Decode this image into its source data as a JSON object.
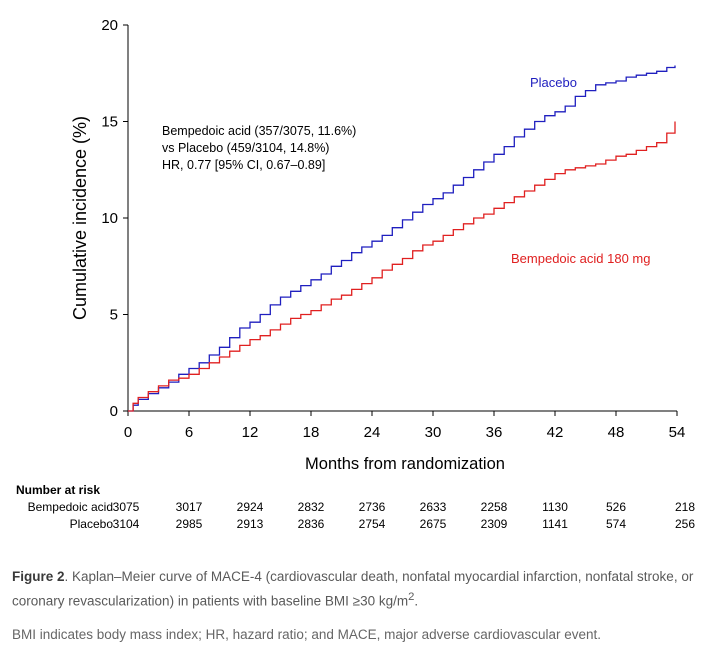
{
  "chart_data": {
    "type": "line",
    "title": "",
    "xlabel": "Months from randomization",
    "ylabel": "Cumulative incidence (%)",
    "xlim": [
      0,
      54
    ],
    "ylim": [
      0,
      20
    ],
    "xticks": [
      0,
      6,
      12,
      18,
      24,
      30,
      36,
      42,
      48,
      54
    ],
    "yticks": [
      0,
      5,
      10,
      15,
      20
    ],
    "series": [
      {
        "name": "Placebo",
        "color": "#1f1fbf",
        "points": [
          [
            0,
            0
          ],
          [
            0.5,
            0.3
          ],
          [
            1,
            0.6
          ],
          [
            2,
            0.9
          ],
          [
            3,
            1.2
          ],
          [
            4,
            1.5
          ],
          [
            5,
            1.9
          ],
          [
            6,
            2.2
          ],
          [
            7,
            2.5
          ],
          [
            8,
            2.9
          ],
          [
            9,
            3.3
          ],
          [
            10,
            3.8
          ],
          [
            11,
            4.3
          ],
          [
            12,
            4.6
          ],
          [
            13,
            5.0
          ],
          [
            14,
            5.5
          ],
          [
            15,
            5.9
          ],
          [
            16,
            6.2
          ],
          [
            17,
            6.5
          ],
          [
            18,
            6.8
          ],
          [
            19,
            7.1
          ],
          [
            20,
            7.5
          ],
          [
            21,
            7.8
          ],
          [
            22,
            8.2
          ],
          [
            23,
            8.5
          ],
          [
            24,
            8.8
          ],
          [
            25,
            9.1
          ],
          [
            26,
            9.5
          ],
          [
            27,
            9.9
          ],
          [
            28,
            10.3
          ],
          [
            29,
            10.7
          ],
          [
            30,
            11.0
          ],
          [
            31,
            11.3
          ],
          [
            32,
            11.7
          ],
          [
            33,
            12.1
          ],
          [
            34,
            12.5
          ],
          [
            35,
            12.9
          ],
          [
            36,
            13.3
          ],
          [
            37,
            13.7
          ],
          [
            38,
            14.2
          ],
          [
            39,
            14.6
          ],
          [
            40,
            15.0
          ],
          [
            41,
            15.3
          ],
          [
            42,
            15.5
          ],
          [
            43,
            15.8
          ],
          [
            44,
            16.3
          ],
          [
            45,
            16.6
          ],
          [
            46,
            16.9
          ],
          [
            47,
            17.0
          ],
          [
            48,
            17.1
          ],
          [
            49,
            17.3
          ],
          [
            50,
            17.4
          ],
          [
            51,
            17.5
          ],
          [
            52,
            17.6
          ],
          [
            53,
            17.8
          ],
          [
            53.8,
            17.9
          ]
        ]
      },
      {
        "name": "Bempedoic acid 180 mg",
        "color": "#e02020",
        "points": [
          [
            0,
            0
          ],
          [
            0.5,
            0.4
          ],
          [
            1,
            0.7
          ],
          [
            2,
            1.0
          ],
          [
            3,
            1.3
          ],
          [
            4,
            1.6
          ],
          [
            5,
            1.7
          ],
          [
            6,
            1.9
          ],
          [
            7,
            2.2
          ],
          [
            8,
            2.5
          ],
          [
            9,
            2.8
          ],
          [
            10,
            3.1
          ],
          [
            11,
            3.4
          ],
          [
            12,
            3.7
          ],
          [
            13,
            3.9
          ],
          [
            14,
            4.2
          ],
          [
            15,
            4.5
          ],
          [
            16,
            4.8
          ],
          [
            17,
            5.0
          ],
          [
            18,
            5.2
          ],
          [
            19,
            5.5
          ],
          [
            20,
            5.8
          ],
          [
            21,
            6.0
          ],
          [
            22,
            6.3
          ],
          [
            23,
            6.6
          ],
          [
            24,
            6.9
          ],
          [
            25,
            7.3
          ],
          [
            26,
            7.6
          ],
          [
            27,
            7.9
          ],
          [
            28,
            8.3
          ],
          [
            29,
            8.6
          ],
          [
            30,
            8.8
          ],
          [
            31,
            9.1
          ],
          [
            32,
            9.4
          ],
          [
            33,
            9.7
          ],
          [
            34,
            10.0
          ],
          [
            35,
            10.2
          ],
          [
            36,
            10.5
          ],
          [
            37,
            10.8
          ],
          [
            38,
            11.1
          ],
          [
            39,
            11.4
          ],
          [
            40,
            11.7
          ],
          [
            41,
            12.0
          ],
          [
            42,
            12.3
          ],
          [
            43,
            12.5
          ],
          [
            44,
            12.6
          ],
          [
            45,
            12.7
          ],
          [
            46,
            12.8
          ],
          [
            47,
            13.0
          ],
          [
            48,
            13.2
          ],
          [
            49,
            13.3
          ],
          [
            50,
            13.5
          ],
          [
            51,
            13.7
          ],
          [
            52,
            13.9
          ],
          [
            53,
            14.4
          ],
          [
            53.8,
            15.0
          ]
        ]
      }
    ],
    "series_labels": {
      "placebo": "Placebo",
      "bempedoic": "Bempedoic acid 180 mg"
    },
    "annotation": [
      "Bempedoic acid (357/3075, 11.6%)",
      "vs Placebo (459/3104, 14.8%)",
      "HR, 0.77 [95% CI, 0.67–0.89]"
    ]
  },
  "risk_table": {
    "title": "Number at risk",
    "rows": [
      {
        "label": "Bempedoic acid",
        "values": [
          "3075",
          "3017",
          "2924",
          "2832",
          "2736",
          "2633",
          "2258",
          "1130",
          "526",
          "218"
        ]
      },
      {
        "label": "Placebo",
        "values": [
          "3104",
          "2985",
          "2913",
          "2836",
          "2754",
          "2675",
          "2309",
          "1141",
          "574",
          "256"
        ]
      }
    ]
  },
  "caption": {
    "label": "Figure 2",
    "text_before": ". Kaplan–Meier curve of MACE-4 (cardiovascular death, nonfatal myocardial infarction, nonfatal stroke, or coronary revascularization) in patients with baseline BMI ≥30 kg/m",
    "superscript": "2",
    "text_after": "."
  },
  "note": "BMI indicates body mass index; HR, hazard ratio; and MACE, major adverse cardiovascular event."
}
